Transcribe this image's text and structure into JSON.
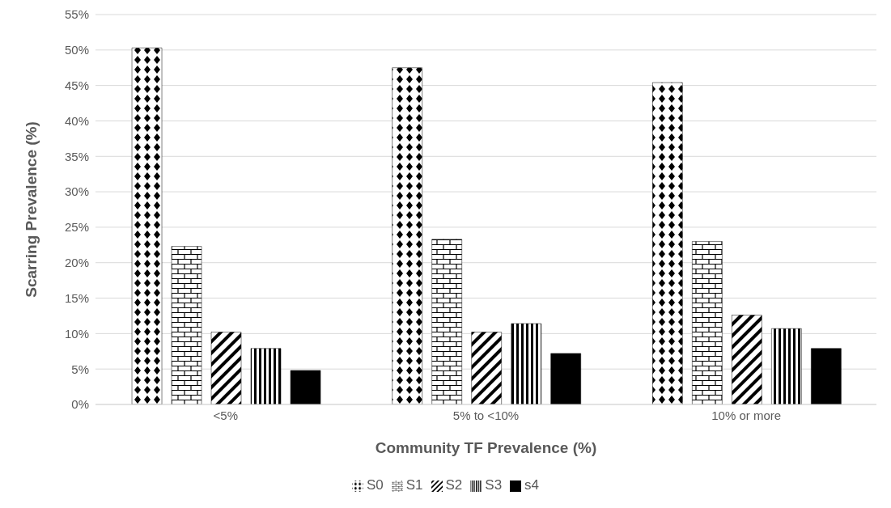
{
  "chart_data": {
    "type": "bar",
    "xlabel": "Community TF Prevalence (%)",
    "ylabel": "Scarring Prevalence (%)",
    "categories": [
      "<5%",
      "5% to <10%",
      "10% or more"
    ],
    "series": [
      {
        "name": "S0",
        "color": "#000000",
        "values": [
          50.3,
          47.5,
          45.4
        ]
      },
      {
        "name": "S1",
        "color": "#000000",
        "values": [
          22.3,
          23.3,
          23.0
        ]
      },
      {
        "name": "S2",
        "color": "#000000",
        "values": [
          10.2,
          10.2,
          12.6
        ]
      },
      {
        "name": "S3",
        "color": "#000000",
        "values": [
          7.9,
          11.4,
          10.7
        ]
      },
      {
        "name": "s4",
        "color": "#000000",
        "values": [
          4.8,
          7.2,
          7.9
        ]
      }
    ],
    "ylim": [
      0,
      55
    ],
    "yticks": [
      {
        "value": 0,
        "label": "0%"
      },
      {
        "value": 5,
        "label": "5%"
      },
      {
        "value": 10,
        "label": "10%"
      },
      {
        "value": 15,
        "label": "15%"
      },
      {
        "value": 20,
        "label": "20%"
      },
      {
        "value": 25,
        "label": "25%"
      },
      {
        "value": 30,
        "label": "30%"
      },
      {
        "value": 35,
        "label": "35%"
      },
      {
        "value": 40,
        "label": "40%"
      },
      {
        "value": 45,
        "label": "45%"
      },
      {
        "value": 50,
        "label": "50%"
      },
      {
        "value": 55,
        "label": "55%"
      }
    ],
    "grid": "y",
    "legend": "bottom"
  }
}
